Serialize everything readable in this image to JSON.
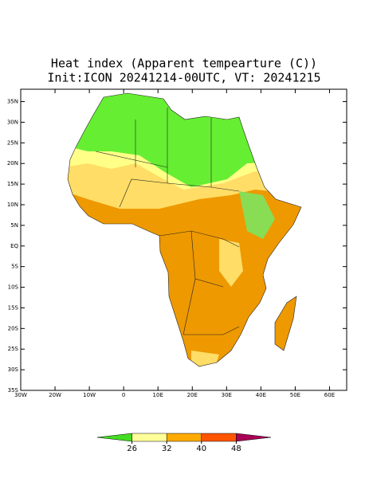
{
  "chart_data": {
    "type": "map",
    "title": "Heat index (Apparent tempearture (C))",
    "subtitle": "Init:ICON 20241214-00UTC, VT: 20241215",
    "xlim": [
      -30,
      65
    ],
    "ylim": [
      -35,
      38
    ],
    "xticks": [
      {
        "value": -30,
        "label": "30W"
      },
      {
        "value": -20,
        "label": "20W"
      },
      {
        "value": -10,
        "label": "10W"
      },
      0,
      {
        "value": 10,
        "label": "10E"
      },
      {
        "value": 20,
        "label": "20E"
      },
      {
        "value": 30,
        "label": "30E"
      },
      {
        "value": 40,
        "label": "40E"
      },
      {
        "value": 50,
        "label": "50E"
      },
      {
        "value": 60,
        "label": "60E"
      }
    ],
    "yticks": [
      {
        "value": 35,
        "label": "35N"
      },
      {
        "value": 30,
        "label": "30N"
      },
      {
        "value": 25,
        "label": "25N"
      },
      {
        "value": 20,
        "label": "20N"
      },
      {
        "value": 15,
        "label": "15N"
      },
      {
        "value": 10,
        "label": "10N"
      },
      {
        "value": 5,
        "label": "5N"
      },
      {
        "value": 0,
        "label": "EQ"
      },
      {
        "value": -5,
        "label": "5S"
      },
      {
        "value": -10,
        "label": "10S"
      },
      {
        "value": -15,
        "label": "15S"
      },
      {
        "value": -20,
        "label": "20S"
      },
      {
        "value": -25,
        "label": "25S"
      },
      {
        "value": -30,
        "label": "30S"
      },
      {
        "value": -35,
        "label": "35S"
      }
    ],
    "colorbar": {
      "levels": [
        26,
        32,
        40,
        48
      ],
      "colors": [
        "#44dd22",
        "#ffff99",
        "#ffaa00",
        "#ff5500",
        "#aa0055"
      ]
    }
  }
}
